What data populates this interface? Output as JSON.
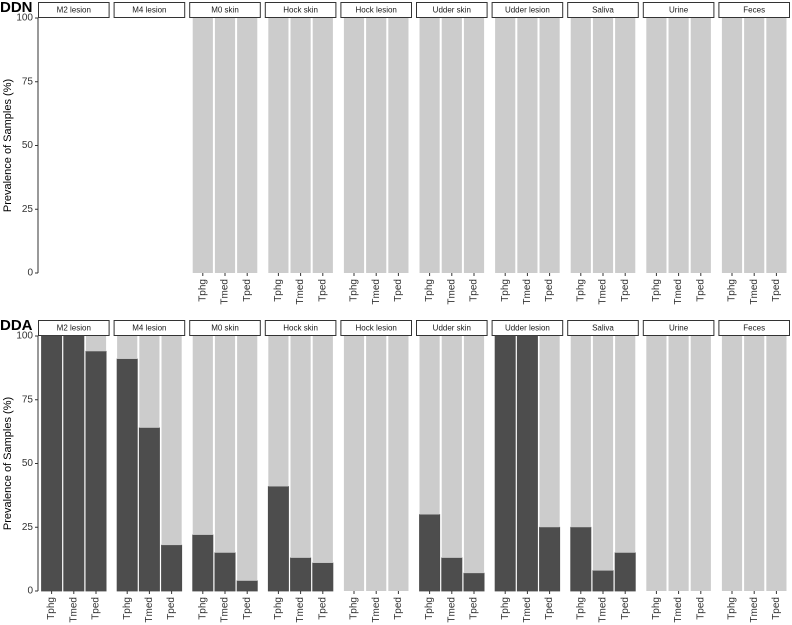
{
  "chart_data": [
    {
      "type": "facet-stacked-bar",
      "title": "DDN",
      "y_label": "Prevalence of Samples (%)",
      "ylim": [
        0,
        100
      ],
      "yticks": [
        0,
        25,
        50,
        75,
        100
      ],
      "facets": [
        {
          "label": "M2 lesion",
          "categories": [
            null,
            null,
            null
          ],
          "series": [
            {
              "color": "#4d4d4d",
              "values": [
                0,
                0,
                0
              ]
            },
            {
              "color": "#cccccc",
              "values": [
                0,
                0,
                0
              ]
            }
          ]
        },
        {
          "label": "M4 lesion",
          "categories": [
            null,
            null,
            null
          ],
          "series": [
            {
              "color": "#4d4d4d",
              "values": [
                0,
                0,
                0
              ]
            },
            {
              "color": "#cccccc",
              "values": [
                0,
                0,
                0
              ]
            }
          ]
        },
        {
          "label": "M0 skin",
          "categories": [
            "Tphg",
            "Tmed",
            "Tped"
          ],
          "series": [
            {
              "color": "#4d4d4d",
              "values": [
                0,
                0,
                0
              ]
            },
            {
              "color": "#cccccc",
              "values": [
                100,
                100,
                100
              ]
            }
          ]
        },
        {
          "label": "Hock skin",
          "categories": [
            "Tphg",
            "Tmed",
            "Tped"
          ],
          "series": [
            {
              "color": "#4d4d4d",
              "values": [
                0,
                0,
                0
              ]
            },
            {
              "color": "#cccccc",
              "values": [
                100,
                100,
                100
              ]
            }
          ]
        },
        {
          "label": "Hock lesion",
          "categories": [
            "Tphg",
            "Tmed",
            "Tped"
          ],
          "series": [
            {
              "color": "#4d4d4d",
              "values": [
                0,
                0,
                0
              ]
            },
            {
              "color": "#cccccc",
              "values": [
                100,
                100,
                100
              ]
            }
          ]
        },
        {
          "label": "Udder skin",
          "categories": [
            "Tphg",
            "Tmed",
            "Tped"
          ],
          "series": [
            {
              "color": "#4d4d4d",
              "values": [
                0,
                0,
                0
              ]
            },
            {
              "color": "#cccccc",
              "values": [
                100,
                100,
                100
              ]
            }
          ]
        },
        {
          "label": "Udder lesion",
          "categories": [
            "Tphg",
            "Tmed",
            "Tped"
          ],
          "series": [
            {
              "color": "#4d4d4d",
              "values": [
                0,
                0,
                0
              ]
            },
            {
              "color": "#cccccc",
              "values": [
                100,
                100,
                100
              ]
            }
          ]
        },
        {
          "label": "Saliva",
          "categories": [
            "Tphg",
            "Tmed",
            "Tped"
          ],
          "series": [
            {
              "color": "#4d4d4d",
              "values": [
                0,
                0,
                0
              ]
            },
            {
              "color": "#cccccc",
              "values": [
                100,
                100,
                100
              ]
            }
          ]
        },
        {
          "label": "Urine",
          "categories": [
            "Tphg",
            "Tmed",
            "Tped"
          ],
          "series": [
            {
              "color": "#4d4d4d",
              "values": [
                0,
                0,
                0
              ]
            },
            {
              "color": "#cccccc",
              "values": [
                100,
                100,
                100
              ]
            }
          ]
        },
        {
          "label": "Feces",
          "categories": [
            "Tphg",
            "Tmed",
            "Tped"
          ],
          "series": [
            {
              "color": "#4d4d4d",
              "values": [
                0,
                0,
                0
              ]
            },
            {
              "color": "#cccccc",
              "values": [
                100,
                100,
                100
              ]
            }
          ]
        }
      ]
    },
    {
      "type": "facet-stacked-bar",
      "title": "DDA",
      "y_label": "Prevalence of Samples (%)",
      "ylim": [
        0,
        100
      ],
      "yticks": [
        0,
        25,
        50,
        75,
        100
      ],
      "facets": [
        {
          "label": "M2 lesion",
          "categories": [
            "Tphg",
            "Tmed",
            "Tped"
          ],
          "series": [
            {
              "color": "#4d4d4d",
              "values": [
                100,
                100,
                94
              ]
            },
            {
              "color": "#cccccc",
              "values": [
                0,
                0,
                6
              ]
            }
          ]
        },
        {
          "label": "M4 lesion",
          "categories": [
            "Tphg",
            "Tmed",
            "Tped"
          ],
          "series": [
            {
              "color": "#4d4d4d",
              "values": [
                91,
                64,
                18
              ]
            },
            {
              "color": "#cccccc",
              "values": [
                9,
                36,
                82
              ]
            }
          ]
        },
        {
          "label": "M0 skin",
          "categories": [
            "Tphg",
            "Tmed",
            "Tped"
          ],
          "series": [
            {
              "color": "#4d4d4d",
              "values": [
                22,
                15,
                4
              ]
            },
            {
              "color": "#cccccc",
              "values": [
                78,
                85,
                96
              ]
            }
          ]
        },
        {
          "label": "Hock skin",
          "categories": [
            "Tphg",
            "Tmed",
            "Tped"
          ],
          "series": [
            {
              "color": "#4d4d4d",
              "values": [
                41,
                13,
                11
              ]
            },
            {
              "color": "#cccccc",
              "values": [
                59,
                87,
                89
              ]
            }
          ]
        },
        {
          "label": "Hock lesion",
          "categories": [
            "Tphg",
            "Tmed",
            "Tped"
          ],
          "series": [
            {
              "color": "#4d4d4d",
              "values": [
                0,
                0,
                0
              ]
            },
            {
              "color": "#cccccc",
              "values": [
                100,
                100,
                100
              ]
            }
          ]
        },
        {
          "label": "Udder skin",
          "categories": [
            "Tphg",
            "Tmed",
            "Tped"
          ],
          "series": [
            {
              "color": "#4d4d4d",
              "values": [
                30,
                13,
                7
              ]
            },
            {
              "color": "#cccccc",
              "values": [
                70,
                87,
                93
              ]
            }
          ]
        },
        {
          "label": "Udder lesion",
          "categories": [
            "Tphg",
            "Tmed",
            "Tped"
          ],
          "series": [
            {
              "color": "#4d4d4d",
              "values": [
                100,
                100,
                25
              ]
            },
            {
              "color": "#cccccc",
              "values": [
                0,
                0,
                75
              ]
            }
          ]
        },
        {
          "label": "Saliva",
          "categories": [
            "Tphg",
            "Tmed",
            "Tped"
          ],
          "series": [
            {
              "color": "#4d4d4d",
              "values": [
                25,
                8,
                15
              ]
            },
            {
              "color": "#cccccc",
              "values": [
                75,
                92,
                85
              ]
            }
          ]
        },
        {
          "label": "Urine",
          "categories": [
            "Tphg",
            "Tmed",
            "Tped"
          ],
          "series": [
            {
              "color": "#4d4d4d",
              "values": [
                0,
                0,
                0
              ]
            },
            {
              "color": "#cccccc",
              "values": [
                100,
                100,
                100
              ]
            }
          ]
        },
        {
          "label": "Feces",
          "categories": [
            "Tphg",
            "Tmed",
            "Tped"
          ],
          "series": [
            {
              "color": "#4d4d4d",
              "values": [
                0,
                0,
                0
              ]
            },
            {
              "color": "#cccccc",
              "values": [
                100,
                100,
                100
              ]
            }
          ]
        }
      ]
    }
  ]
}
